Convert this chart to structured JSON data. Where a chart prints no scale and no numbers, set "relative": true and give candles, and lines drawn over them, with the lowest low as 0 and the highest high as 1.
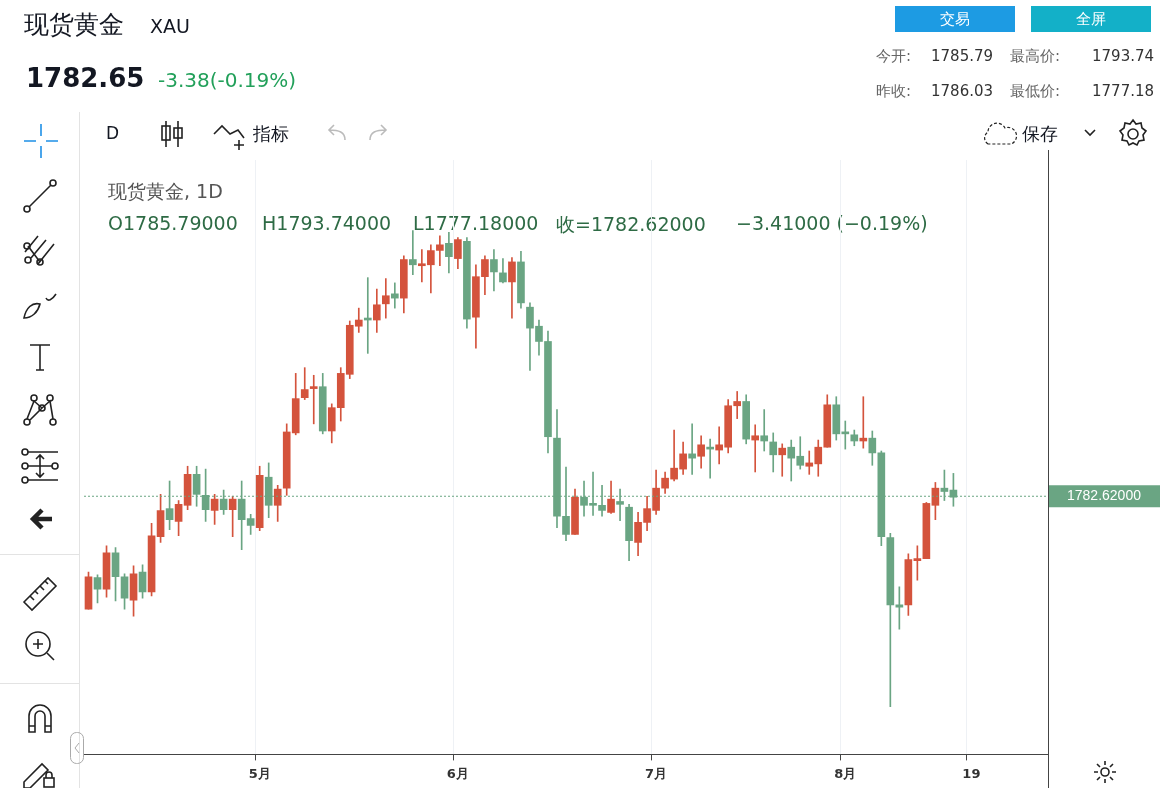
{
  "chart_data": {
    "type": "candlestick",
    "relative": true,
    "title": "现货黄金",
    "subtitle": "XAU",
    "categories": [
      null,
      null,
      null,
      null,
      null,
      null,
      null,
      null,
      null,
      null,
      null,
      null,
      null,
      null,
      null,
      null,
      null,
      null,
      null,
      "5月",
      null,
      null,
      null,
      null,
      null,
      null,
      null,
      null,
      null,
      null,
      null,
      null,
      null,
      null,
      null,
      null,
      null,
      null,
      null,
      null,
      null,
      "6月",
      null,
      null,
      null,
      null,
      null,
      null,
      null,
      null,
      null,
      null,
      null,
      null,
      null,
      null,
      null,
      null,
      null,
      null,
      null,
      null,
      null,
      "7月",
      null,
      null,
      null,
      null,
      null,
      null,
      null,
      null,
      null,
      null,
      null,
      null,
      null,
      null,
      null,
      null,
      null,
      null,
      null,
      null,
      "8月",
      null,
      null,
      null,
      null,
      null,
      null,
      null,
      null,
      null,
      null,
      null,
      null,
      null,
      "19",
      null,
      null,
      null,
      null,
      null,
      null,
      null,
      null
    ],
    "ohlc": [
      [
        0.205,
        0.283,
        0.205,
        0.273
      ],
      [
        0.271,
        0.277,
        0.218,
        0.247
      ],
      [
        0.247,
        0.338,
        0.23,
        0.323
      ],
      [
        0.323,
        0.334,
        0.222,
        0.273
      ],
      [
        0.273,
        0.279,
        0.205,
        0.228
      ],
      [
        0.224,
        0.296,
        0.19,
        0.279
      ],
      [
        0.283,
        0.298,
        0.228,
        0.241
      ],
      [
        0.241,
        0.385,
        0.233,
        0.359
      ],
      [
        0.357,
        0.446,
        0.345,
        0.412
      ],
      [
        0.416,
        0.474,
        0.372,
        0.393
      ],
      [
        0.389,
        0.433,
        0.359,
        0.425
      ],
      [
        0.423,
        0.505,
        0.414,
        0.488
      ],
      [
        0.488,
        0.505,
        0.421,
        0.446
      ],
      [
        0.444,
        0.499,
        0.389,
        0.414
      ],
      [
        0.412,
        0.446,
        0.383,
        0.436
      ],
      [
        0.436,
        0.455,
        0.404,
        0.414
      ],
      [
        0.414,
        0.442,
        0.357,
        0.436
      ],
      [
        0.436,
        0.474,
        0.33,
        0.393
      ],
      [
        0.395,
        0.404,
        0.362,
        0.381
      ],
      [
        0.376,
        0.505,
        0.37,
        0.486
      ],
      [
        0.482,
        0.512,
        0.397,
        0.423
      ],
      [
        0.423,
        0.465,
        0.389,
        0.457
      ],
      [
        0.459,
        0.594,
        0.444,
        0.577
      ],
      [
        0.575,
        0.7,
        0.571,
        0.647
      ],
      [
        0.649,
        0.712,
        0.645,
        0.666
      ],
      [
        0.668,
        0.696,
        0.594,
        0.672
      ],
      [
        0.672,
        0.7,
        0.573,
        0.579
      ],
      [
        0.579,
        0.636,
        0.554,
        0.628
      ],
      [
        0.628,
        0.712,
        0.6,
        0.7
      ],
      [
        0.698,
        0.81,
        0.689,
        0.801
      ],
      [
        0.799,
        0.837,
        0.786,
        0.812
      ],
      [
        0.814,
        0.901,
        0.742,
        0.812
      ],
      [
        0.812,
        0.877,
        0.786,
        0.844
      ],
      [
        0.846,
        0.899,
        0.816,
        0.863
      ],
      [
        0.867,
        0.89,
        0.837,
        0.858
      ],
      [
        0.858,
        0.947,
        0.827,
        0.939
      ],
      [
        0.939,
        1,
        0.907,
        0.928
      ],
      [
        0.926,
        0.96,
        0.892,
        0.928
      ],
      [
        0.928,
        0.97,
        0.869,
        0.958
      ],
      [
        0.958,
        0.989,
        0.926,
        0.97
      ],
      [
        0.973,
        0.996,
        0.911,
        0.945
      ],
      [
        0.941,
        0.985,
        0.92,
        0.981
      ],
      [
        0.977,
        0.985,
        0.795,
        0.814
      ],
      [
        0.818,
        0.928,
        0.753,
        0.903
      ],
      [
        0.903,
        0.947,
        0.865,
        0.939
      ],
      [
        0.939,
        0.96,
        0.873,
        0.913
      ],
      [
        0.911,
        0.941,
        0.89,
        0.892
      ],
      [
        0.892,
        0.943,
        0.816,
        0.934
      ],
      [
        0.934,
        0.956,
        0.837,
        0.848
      ],
      [
        0.839,
        0.848,
        0.706,
        0.795
      ],
      [
        0.799,
        0.812,
        0.738,
        0.767
      ],
      [
        0.767,
        0.789,
        0.533,
        0.567
      ],
      [
        0.564,
        0.624,
        0.376,
        0.4
      ],
      [
        0.4,
        0.503,
        0.349,
        0.362
      ],
      [
        0.362,
        0.457,
        0.362,
        0.44
      ],
      [
        0.44,
        0.474,
        0.4,
        0.423
      ],
      [
        0.425,
        0.493,
        0.402,
        0.423
      ],
      [
        0.423,
        0.465,
        0.4,
        0.412
      ],
      [
        0.408,
        0.474,
        0.406,
        0.436
      ],
      [
        0.431,
        0.457,
        0.391,
        0.425
      ],
      [
        0.419,
        0.425,
        0.307,
        0.349
      ],
      [
        0.345,
        0.408,
        0.317,
        0.387
      ],
      [
        0.387,
        0.442,
        0.37,
        0.416
      ],
      [
        0.412,
        0.497,
        0.404,
        0.459
      ],
      [
        0.459,
        0.493,
        0.448,
        0.48
      ],
      [
        0.478,
        0.581,
        0.474,
        0.501
      ],
      [
        0.499,
        0.556,
        0.488,
        0.531
      ],
      [
        0.531,
        0.594,
        0.488,
        0.522
      ],
      [
        0.526,
        0.569,
        0.501,
        0.55
      ],
      [
        0.545,
        0.562,
        0.48,
        0.541
      ],
      [
        0.539,
        0.588,
        0.51,
        0.55
      ],
      [
        0.545,
        0.645,
        0.533,
        0.632
      ],
      [
        0.632,
        0.662,
        0.605,
        0.641
      ],
      [
        0.641,
        0.655,
        0.552,
        0.562
      ],
      [
        0.56,
        0.592,
        0.493,
        0.569
      ],
      [
        0.569,
        0.624,
        0.537,
        0.558
      ],
      [
        0.556,
        0.575,
        0.493,
        0.529
      ],
      [
        0.529,
        0.552,
        0.484,
        0.543
      ],
      [
        0.545,
        0.56,
        0.474,
        0.522
      ],
      [
        0.526,
        0.567,
        0.499,
        0.507
      ],
      [
        0.505,
        0.537,
        0.488,
        0.512
      ],
      [
        0.51,
        0.56,
        0.484,
        0.545
      ],
      [
        0.545,
        0.655,
        0.545,
        0.634
      ],
      [
        0.634,
        0.651,
        0.56,
        0.573
      ],
      [
        0.575,
        0.6,
        0.541,
        0.573
      ],
      [
        0.571,
        0.581,
        0.548,
        0.558
      ],
      [
        0.558,
        0.651,
        0.543,
        0.564
      ],
      [
        0.564,
        0.579,
        0.507,
        0.533
      ],
      [
        0.533,
        0.537,
        0.338,
        0.357
      ],
      [
        0.355,
        0.364,
        0,
        0.214
      ],
      [
        0.214,
        0.252,
        0.163,
        0.209
      ],
      [
        0.214,
        0.321,
        0.192,
        0.309
      ],
      [
        0.307,
        0.338,
        0.266,
        0.311
      ],
      [
        0.311,
        0.429,
        0.311,
        0.427
      ],
      [
        0.423,
        0.471,
        0.393,
        0.459
      ],
      [
        0.459,
        0.497,
        0.433,
        0.452
      ],
      [
        0.455,
        0.49,
        0.421,
        0.44
      ],
      null,
      null,
      null,
      null,
      null,
      null,
      null,
      null,
      null,
      null
    ],
    "colors": [
      "#d4533c",
      "#6aa583",
      "#d4533c",
      "#6aa583",
      "#6aa583",
      "#d4533c",
      "#6aa583",
      "#d4533c",
      "#d4533c",
      "#6aa583",
      "#d4533c",
      "#d4533c",
      "#6aa583",
      "#6aa583",
      "#d4533c",
      "#6aa583",
      "#d4533c",
      "#6aa583",
      "#6aa583",
      "#d4533c",
      "#6aa583",
      "#d4533c",
      "#d4533c",
      "#d4533c",
      "#d4533c",
      "#d4533c",
      "#6aa583",
      "#d4533c",
      "#d4533c",
      "#d4533c",
      "#d4533c",
      "#6aa583",
      "#d4533c",
      "#d4533c",
      "#6aa583",
      "#d4533c",
      "#6aa583",
      "#d4533c",
      "#d4533c",
      "#d4533c",
      "#6aa583",
      "#d4533c",
      "#6aa583",
      "#d4533c",
      "#d4533c",
      "#6aa583",
      "#6aa583",
      "#d4533c",
      "#6aa583",
      "#6aa583",
      "#6aa583",
      "#6aa583",
      "#6aa583",
      "#6aa583",
      "#d4533c",
      "#6aa583",
      "#6aa583",
      "#6aa583",
      "#d4533c",
      "#6aa583",
      "#6aa583",
      "#d4533c",
      "#d4533c",
      "#d4533c",
      "#d4533c",
      "#d4533c",
      "#d4533c",
      "#6aa583",
      "#d4533c",
      "#6aa583",
      "#d4533c",
      "#d4533c",
      "#d4533c",
      "#6aa583",
      "#d4533c",
      "#6aa583",
      "#6aa583",
      "#d4533c",
      "#6aa583",
      "#6aa583",
      "#d4533c",
      "#d4533c",
      "#d4533c",
      "#6aa583",
      "#6aa583",
      "#6aa583",
      "#d4533c",
      "#6aa583",
      "#6aa583",
      "#6aa583",
      "#6aa583",
      "#d4533c",
      "#d4533c",
      "#d4533c",
      "#d4533c",
      "#6aa583",
      "#6aa583",
      null,
      null,
      null,
      null,
      null,
      null,
      null,
      null,
      null,
      null
    ],
    "ref_lines": [
      {
        "axis": "y",
        "value": 0.442,
        "color": "#6aa583",
        "line_style": "dotted"
      }
    ],
    "grid": "x",
    "legend": false,
    "annotations": [
      "1782.65",
      "-3.38(-0.19%)",
      "交易",
      "全屏",
      "今开:",
      "1785.79",
      "最高价:",
      "1793.74",
      "昨收:",
      "1786.03",
      "最低价:",
      "1777.18",
      "D",
      "指标",
      "保存",
      "现货黄金, 1D",
      "O1785.79000",
      "H1793.74000",
      "L1777.18000",
      "收=1782.62000",
      "−3.41000 (−0.19%)",
      "1782.62000"
    ]
  }
}
